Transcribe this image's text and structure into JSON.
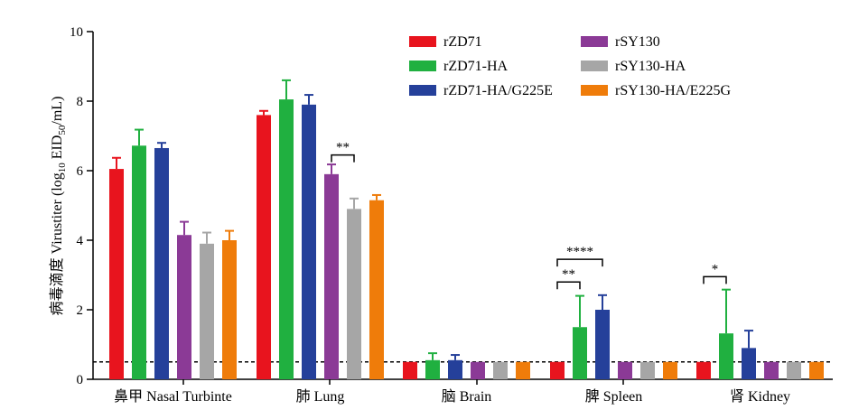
{
  "chart_data": {
    "type": "bar",
    "ylabel_cn": "病毒滴度",
    "ylabel_en_pre": "Virustiter (log",
    "ylabel_sub": "10",
    "ylabel_mid": " EID",
    "ylabel_sub2": "50",
    "ylabel_post": "/mL)",
    "ylim": [
      0,
      10
    ],
    "yticks": [
      "0",
      "2",
      "4",
      "6",
      "8",
      "10"
    ],
    "categories": [
      "鼻甲 Nasal Turbinte",
      "肺 Lung",
      "脑 Brain",
      "脾 Spleen",
      "肾 Kidney"
    ],
    "detection_limit": 0.5,
    "series": [
      {
        "name": "rZD71",
        "color": "#e8141e",
        "values": [
          6.05,
          7.6,
          0.5,
          0.5,
          0.5
        ],
        "errors": [
          0.32,
          0.12,
          0,
          0,
          0
        ]
      },
      {
        "name": "rZD71-HA",
        "color": "#20b040",
        "values": [
          6.72,
          8.05,
          0.55,
          1.5,
          1.32
        ],
        "errors": [
          0.46,
          0.55,
          0.2,
          0.9,
          1.26
        ]
      },
      {
        "name": "rZD71-HA/G225E",
        "color": "#25409a",
        "values": [
          6.65,
          7.9,
          0.55,
          2.0,
          0.9
        ],
        "errors": [
          0.15,
          0.28,
          0.15,
          0.42,
          0.5
        ]
      },
      {
        "name": "rSY130",
        "color": "#8b3a96",
        "values": [
          4.15,
          5.9,
          0.5,
          0.5,
          0.5
        ],
        "errors": [
          0.38,
          0.28,
          0,
          0,
          0
        ]
      },
      {
        "name": "rSY130-HA",
        "color": "#a6a6a6",
        "values": [
          3.9,
          4.9,
          0.5,
          0.5,
          0.5
        ],
        "errors": [
          0.32,
          0.3,
          0,
          0,
          0
        ]
      },
      {
        "name": "rSY130-HA/E225G",
        "color": "#ef7c0a",
        "values": [
          4.0,
          5.15,
          0.5,
          0.5,
          0.5
        ],
        "errors": [
          0.27,
          0.15,
          0,
          0,
          0
        ]
      }
    ],
    "legend_columns": [
      [
        0,
        1,
        2
      ],
      [
        3,
        4,
        5
      ]
    ],
    "annotations": [
      {
        "label": "**",
        "category": 1,
        "from_series": 3,
        "to_series": 4,
        "y": 6.45
      },
      {
        "label": "**",
        "category": 3,
        "from_series": 0,
        "to_series": 1,
        "y": 2.8
      },
      {
        "label": "****",
        "category": 3,
        "from_series": 0,
        "to_series": 2,
        "y": 3.45
      },
      {
        "label": "*",
        "category": 4,
        "from_series": 0,
        "to_series": 1,
        "y": 2.95
      }
    ]
  }
}
